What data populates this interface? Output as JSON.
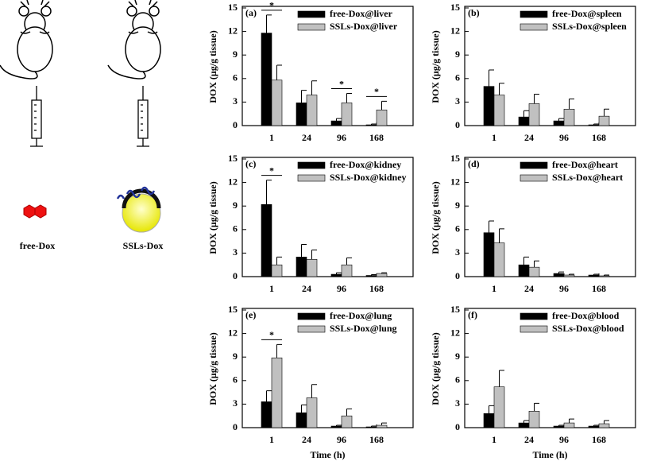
{
  "illustration": {
    "labels": [
      "free-Dox",
      "SSLs-Dox"
    ]
  },
  "chart_data": [
    {
      "type": "bar",
      "title": "(a)",
      "ylabel": "DOX (μg/g tissue)",
      "categories": [
        "1",
        "24",
        "96",
        "168"
      ],
      "series": [
        {
          "name": "free-Dox@liver",
          "color": "#000000",
          "values": [
            11.8,
            2.9,
            0.6,
            0.1
          ],
          "errors": [
            2.3,
            1.6,
            0.3,
            0.1
          ]
        },
        {
          "name": "SSLs-Dox@liver",
          "color": "#c0c0c0",
          "values": [
            5.8,
            3.9,
            2.9,
            2.0
          ],
          "errors": [
            1.9,
            1.8,
            1.2,
            1.1
          ]
        }
      ],
      "significance": [
        "*",
        null,
        "*",
        "*"
      ],
      "ylim": [
        0,
        15
      ],
      "yticks": [
        0,
        3,
        6,
        9,
        12,
        15
      ]
    },
    {
      "type": "bar",
      "title": "(b)",
      "ylabel": "DOX (μg/g tissue)",
      "categories": [
        "1",
        "24",
        "96",
        "168"
      ],
      "series": [
        {
          "name": "free-Dox@spleen",
          "color": "#000000",
          "values": [
            5.0,
            1.1,
            0.6,
            0.1
          ],
          "errors": [
            2.1,
            0.8,
            0.3,
            0.1
          ]
        },
        {
          "name": "SSLs-Dox@spleen",
          "color": "#c0c0c0",
          "values": [
            3.9,
            2.8,
            2.1,
            1.2
          ],
          "errors": [
            1.5,
            1.2,
            1.3,
            0.9
          ]
        }
      ],
      "ylim": [
        0,
        15
      ],
      "yticks": [
        0,
        3,
        6,
        9,
        12,
        15
      ]
    },
    {
      "type": "bar",
      "title": "(c)",
      "ylabel": "DOX (μg/g tissue)",
      "categories": [
        "1",
        "24",
        "96",
        "168"
      ],
      "series": [
        {
          "name": "free-Dox@kidney",
          "color": "#000000",
          "values": [
            9.2,
            2.5,
            0.3,
            0.15
          ],
          "errors": [
            3.1,
            1.6,
            0.2,
            0.1
          ]
        },
        {
          "name": "SSLs-Dox@kidney",
          "color": "#c0c0c0",
          "values": [
            1.5,
            2.2,
            1.5,
            0.4
          ],
          "errors": [
            1.0,
            1.2,
            0.9,
            0.1
          ]
        }
      ],
      "significance": [
        "*",
        null,
        null,
        null
      ],
      "ylim": [
        0,
        15
      ],
      "yticks": [
        0,
        3,
        6,
        9,
        12,
        15
      ]
    },
    {
      "type": "bar",
      "title": "(d)",
      "ylabel": "DOX (μg/g tissue)",
      "categories": [
        "1",
        "24",
        "96",
        "168"
      ],
      "series": [
        {
          "name": "free-Dox@heart",
          "color": "#000000",
          "values": [
            5.6,
            1.5,
            0.4,
            0.2
          ],
          "errors": [
            1.5,
            1.0,
            0.2,
            0.1
          ]
        },
        {
          "name": "SSLs-Dox@heart",
          "color": "#c0c0c0",
          "values": [
            4.3,
            1.2,
            0.2,
            0.1
          ],
          "errors": [
            1.8,
            0.8,
            0.1,
            0.1
          ]
        }
      ],
      "ylim": [
        0,
        15
      ],
      "yticks": [
        0,
        3,
        6,
        9,
        12,
        15
      ]
    },
    {
      "type": "bar",
      "title": "(e)",
      "ylabel": "DOX (μg/g tissue)",
      "xlabel": "Time (h)",
      "categories": [
        "1",
        "24",
        "96",
        "168"
      ],
      "series": [
        {
          "name": "free-Dox@lung",
          "color": "#000000",
          "values": [
            3.3,
            1.9,
            0.2,
            0.1
          ],
          "errors": [
            1.4,
            1.0,
            0.1,
            0.1
          ]
        },
        {
          "name": "SSLs-Dox@lung",
          "color": "#c0c0c0",
          "values": [
            8.9,
            3.8,
            1.5,
            0.3
          ],
          "errors": [
            1.7,
            1.7,
            0.9,
            0.3
          ]
        }
      ],
      "significance": [
        "*",
        null,
        null,
        null
      ],
      "ylim": [
        0,
        15
      ],
      "yticks": [
        0,
        3,
        6,
        9,
        12,
        15
      ]
    },
    {
      "type": "bar",
      "title": "(f)",
      "ylabel": "DOX (μg/g tissue)",
      "xlabel": "Time (h)",
      "categories": [
        "1",
        "24",
        "96",
        "168"
      ],
      "series": [
        {
          "name": "free-Dox@blood",
          "color": "#000000",
          "values": [
            1.8,
            0.6,
            0.2,
            0.2
          ],
          "errors": [
            1.0,
            0.3,
            0.1,
            0.1
          ]
        },
        {
          "name": "SSLs-Dox@blood",
          "color": "#c0c0c0",
          "values": [
            5.2,
            2.1,
            0.6,
            0.5
          ],
          "errors": [
            2.1,
            1.0,
            0.5,
            0.4
          ]
        }
      ],
      "ylim": [
        0,
        15
      ],
      "yticks": [
        0,
        3,
        6,
        9,
        12,
        15
      ]
    }
  ]
}
